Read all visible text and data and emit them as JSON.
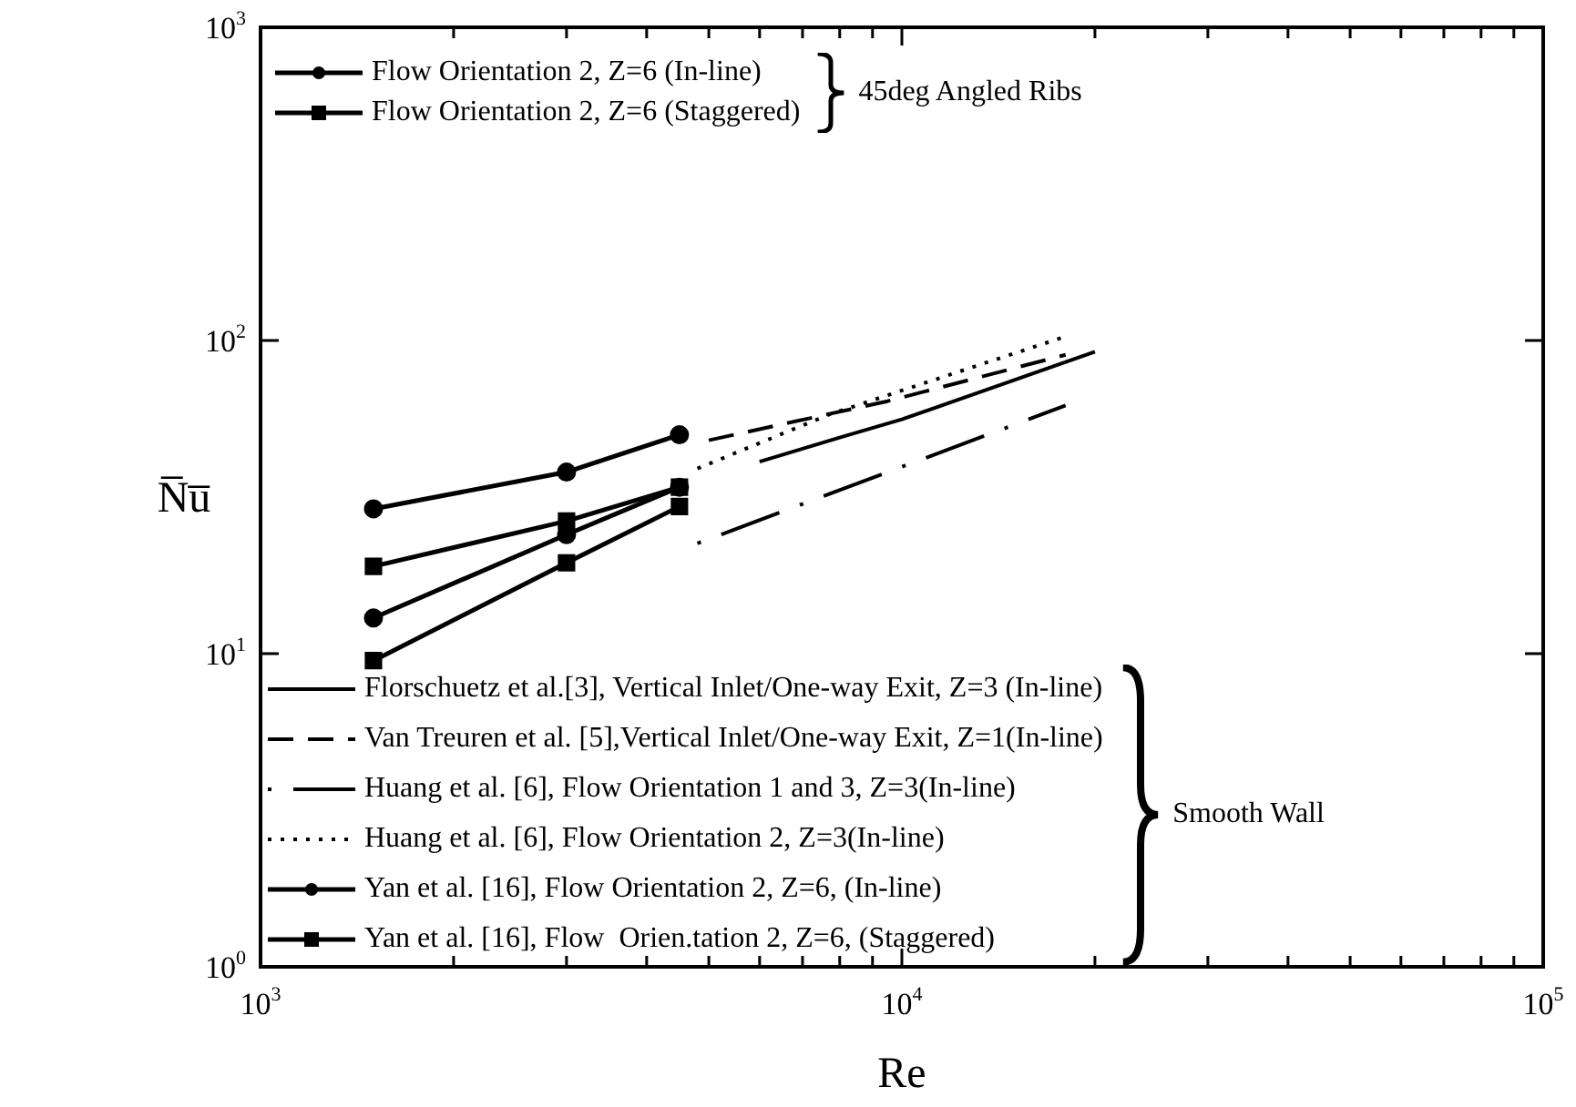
{
  "chart_data": {
    "type": "line",
    "xlabel": "Re",
    "ylabel": "N̅u̅",
    "log": "xy",
    "grid": false,
    "legend": "left",
    "xlim": [
      1000,
      100000
    ],
    "xticks": [
      {
        "value": 1000,
        "label": "10$^{3}$"
      },
      {
        "value": 2000,
        "label": null
      },
      {
        "value": 3000,
        "label": null
      },
      {
        "value": 4000,
        "label": null
      },
      {
        "value": 5000,
        "label": null
      },
      {
        "value": 6000,
        "label": null
      },
      {
        "value": 7000,
        "label": null
      },
      {
        "value": 8000,
        "label": null
      },
      {
        "value": 9000,
        "label": null
      },
      {
        "value": 10000,
        "label": "10$^{4}$"
      },
      {
        "value": 20000,
        "label": null
      },
      {
        "value": 30000,
        "label": null
      },
      {
        "value": 40000,
        "label": null
      },
      {
        "value": 50000,
        "label": null
      },
      {
        "value": 60000,
        "label": null
      },
      {
        "value": 70000,
        "label": null
      },
      {
        "value": 80000,
        "label": null
      },
      {
        "value": 90000,
        "label": null
      },
      {
        "value": 100000,
        "label": "10$^{5}$"
      }
    ],
    "ylim": [
      1,
      1000
    ],
    "yticks": [
      {
        "value": 1,
        "label": "10$^{0}$"
      },
      {
        "value": 10,
        "label": "10$^{1}$"
      },
      {
        "value": 100,
        "label": "10$^{2}$"
      },
      {
        "value": 1000,
        "label": "10$^{3}$"
      }
    ],
    "annotations": [
      "45deg Angled Ribs",
      "Smooth Wall"
    ],
    "series": [
      {
        "name": "Flow Orientation 2, Z=6 (In-line)",
        "color": "#000000",
        "marker": "circle",
        "line_style": "solid",
        "x": [
          1500,
          3000,
          4500
        ],
        "values": [
          29,
          38,
          50
        ]
      },
      {
        "name": "Flow Orientation 2, Z=6 (Staggered)",
        "color": "#000000",
        "marker": "square",
        "line_style": "solid",
        "x": [
          1500,
          3000,
          4500
        ],
        "values": [
          19,
          26.5,
          34
        ]
      },
      {
        "name": "Florschuetz et al.[3], Vertical Inlet/One-way Exit, Z=3 (In-line)",
        "color": "#000000",
        "marker": "none",
        "line_style": "solid",
        "x": [
          6000,
          8000,
          10000,
          20000
        ],
        "values": [
          41,
          49,
          56,
          92
        ]
      },
      {
        "name": "Van Treuren et al. [5],Vertical Inlet/One-way Exit, Z=1(In-line)",
        "color": "#000000",
        "marker": "none",
        "line_style": "dashed",
        "x": [
          5000,
          9500,
          18000
        ],
        "values": [
          48,
          64,
          90
        ]
      },
      {
        "name": "Huang et al. [6], Flow Orientation 1 and 3, Z=3(In-line)",
        "color": "#000000",
        "marker": "none",
        "line_style": "dashdot",
        "x": [
          4800,
          18000
        ],
        "values": [
          22.5,
          62
        ]
      },
      {
        "name": "Huang et al. [6], Flow Orientation 2, Z=3(In-line)",
        "color": "#000000",
        "marker": "none",
        "line_style": "dotted",
        "x": [
          4800,
          7700,
          18000
        ],
        "values": [
          39,
          58,
          103
        ]
      },
      {
        "name": "Yan et al. [16], Flow Orientation 2, Z=6, (In-line)",
        "color": "#000000",
        "marker": "circle",
        "line_style": "solid",
        "x": [
          1500,
          3000,
          4500
        ],
        "values": [
          13,
          24,
          34
        ]
      },
      {
        "name": "Yan et al. [16], Flow  Orien.tation 2, Z=6, (Staggered)",
        "color": "#000000",
        "marker": "square",
        "line_style": "solid",
        "x": [
          1500,
          3000,
          4500
        ],
        "values": [
          9.5,
          19.5,
          29.5
        ]
      }
    ]
  }
}
